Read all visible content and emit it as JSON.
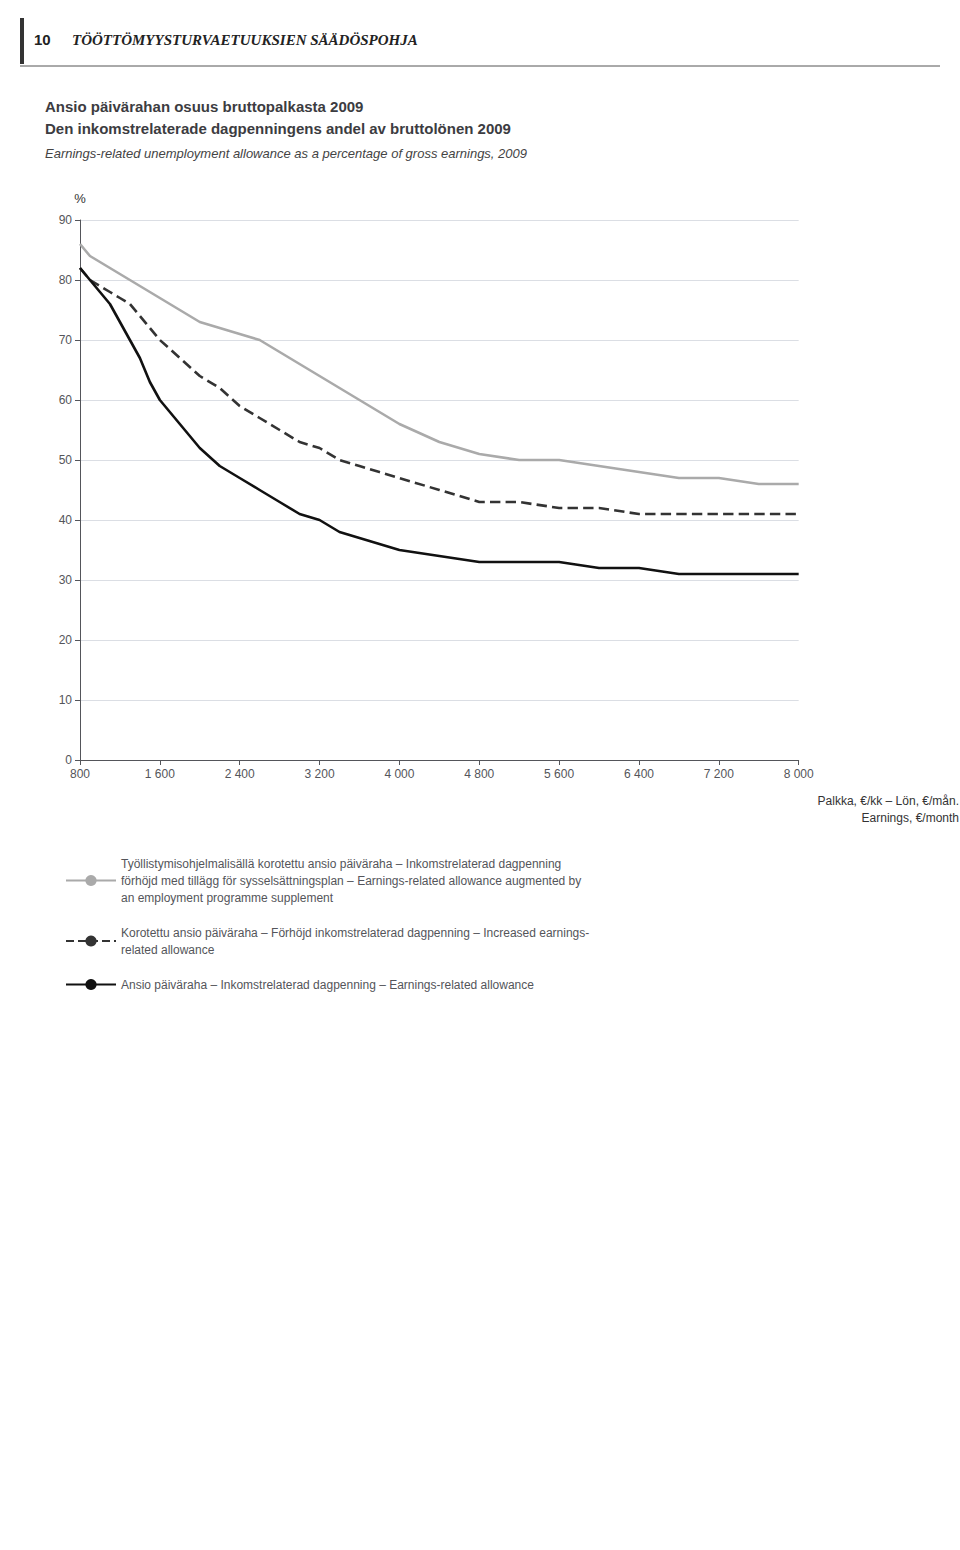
{
  "chart_data": {
    "type": "line",
    "annotations": [
      "10",
      "TÖÖTTÖMYYSTURVAETUUKSIEN SÄÄDÖSPOHJA"
    ],
    "title": "Ansio päivärahan osuus bruttopalkasta 2009\nDen inkomstrelaterade dagpenningens andel av bruttolönen 2009",
    "subtitle": "Earnings-related unemployment allowance as a percentage of gross earnings, 2009",
    "ylabel": "%",
    "xlabel": "Palkka, €/kk – Lön, €/mån.\nEarnings, €/month",
    "x": [
      800,
      900,
      1000,
      1100,
      1200,
      1300,
      1400,
      1500,
      1600,
      1800,
      2000,
      2200,
      2400,
      2600,
      2800,
      3000,
      3200,
      3400,
      3600,
      3800,
      4000,
      4400,
      4800,
      5200,
      5600,
      6000,
      6400,
      6800,
      7200,
      7600,
      8000
    ],
    "series": [
      {
        "name": "Työllistymisohjelmalisällä korotettu ansio päiväraha – Inkomstrelaterad dagpenning\nförhöjd med tillägg för sysselsättningsplan – Earnings-related allowance augmented by\nan employment programme supplement",
        "color": "#aaaaaa",
        "line_style": "solid",
        "values": [
          86,
          84,
          83,
          82,
          81,
          80,
          79,
          78,
          77,
          75,
          73,
          72,
          71,
          70,
          68,
          66,
          64,
          62,
          60,
          58,
          56,
          53,
          51,
          50,
          50,
          49,
          48,
          47,
          47,
          46,
          46
        ]
      },
      {
        "name": "Korotettu ansio päiväraha – Förhöjd inkomstrelaterad dagpenning – Increased earnings-\nrelated allowance",
        "color": "#333333",
        "line_style": "dashed",
        "values": [
          82,
          80,
          79,
          78,
          77,
          76,
          74,
          72,
          70,
          67,
          64,
          62,
          59,
          57,
          55,
          53,
          52,
          50,
          49,
          48,
          47,
          45,
          43,
          43,
          42,
          42,
          41,
          41,
          41,
          41,
          41
        ]
      },
      {
        "name": "Ansio päiväraha – Inkomstrelaterad dagpenning – Earnings-related allowance",
        "color": "#111111",
        "line_style": "solid",
        "values": [
          82,
          80,
          78,
          76,
          73,
          70,
          67,
          63,
          60,
          56,
          52,
          49,
          47,
          45,
          43,
          41,
          40,
          38,
          37,
          36,
          35,
          34,
          33,
          33,
          33,
          32,
          32,
          31,
          31,
          31,
          31
        ]
      }
    ],
    "xlim": [
      800,
      8000
    ],
    "xticks": [
      800,
      {
        "value": 1600,
        "label": "1 600"
      },
      {
        "value": 2400,
        "label": "2 400"
      },
      {
        "value": 3200,
        "label": "3 200"
      },
      {
        "value": 4000,
        "label": "4 000"
      },
      {
        "value": 4800,
        "label": "4 800"
      },
      {
        "value": 5600,
        "label": "5 600"
      },
      {
        "value": 6400,
        "label": "6 400"
      },
      {
        "value": 7200,
        "label": "7 200"
      },
      {
        "value": 8000,
        "label": "8 000"
      }
    ],
    "ylim": [
      0,
      90
    ],
    "yticks": [
      0,
      10,
      20,
      30,
      40,
      50,
      60,
      70,
      80,
      90
    ],
    "grid": true,
    "legend": "bottom"
  }
}
